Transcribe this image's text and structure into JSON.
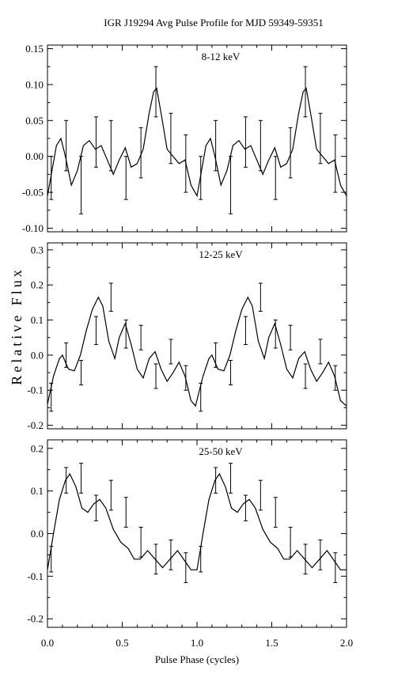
{
  "title": "IGR J19294 Avg Pulse Profile for MJD 59349-59351",
  "ylabel": "Relative Flux",
  "xlabel": "Pulse Phase (cycles)",
  "chart_data": [
    {
      "type": "line",
      "panel_label": "8-12 keV",
      "x_ticks": [
        "0.0",
        "0.5",
        "1.0",
        "1.5",
        "2.0"
      ],
      "xlim": [
        0,
        2
      ],
      "ylim": [
        -0.105,
        0.155
      ],
      "y_ticks": [
        {
          "v": -0.1,
          "label": "-0.10"
        },
        {
          "v": -0.05,
          "label": "-0.05"
        },
        {
          "v": 0.0,
          "label": "0.00"
        },
        {
          "v": 0.05,
          "label": "0.05"
        },
        {
          "v": 0.1,
          "label": "0.10"
        },
        {
          "v": 0.15,
          "label": "0.15"
        }
      ],
      "points": [
        {
          "x": 0.025,
          "y": -0.03,
          "err": 0.03
        },
        {
          "x": 0.125,
          "y": 0.015,
          "err": 0.035
        },
        {
          "x": 0.225,
          "y": -0.04,
          "err": 0.04
        },
        {
          "x": 0.325,
          "y": 0.02,
          "err": 0.035
        },
        {
          "x": 0.425,
          "y": 0.015,
          "err": 0.035
        },
        {
          "x": 0.525,
          "y": -0.03,
          "err": 0.03
        },
        {
          "x": 0.625,
          "y": 0.005,
          "err": 0.035
        },
        {
          "x": 0.725,
          "y": 0.09,
          "err": 0.035
        },
        {
          "x": 0.825,
          "y": 0.025,
          "err": 0.035
        },
        {
          "x": 0.925,
          "y": -0.01,
          "err": 0.04
        },
        {
          "x": 1.025,
          "y": -0.03,
          "err": 0.03
        },
        {
          "x": 1.125,
          "y": 0.015,
          "err": 0.035
        },
        {
          "x": 1.225,
          "y": -0.04,
          "err": 0.04
        },
        {
          "x": 1.325,
          "y": 0.02,
          "err": 0.035
        },
        {
          "x": 1.425,
          "y": 0.015,
          "err": 0.035
        },
        {
          "x": 1.525,
          "y": -0.03,
          "err": 0.03
        },
        {
          "x": 1.625,
          "y": 0.005,
          "err": 0.035
        },
        {
          "x": 1.725,
          "y": 0.09,
          "err": 0.035
        },
        {
          "x": 1.825,
          "y": 0.025,
          "err": 0.035
        },
        {
          "x": 1.925,
          "y": -0.01,
          "err": 0.04
        }
      ],
      "curve": [
        [
          0.0,
          -0.055
        ],
        [
          0.03,
          -0.02
        ],
        [
          0.06,
          0.015
        ],
        [
          0.09,
          0.025
        ],
        [
          0.12,
          0.0
        ],
        [
          0.16,
          -0.04
        ],
        [
          0.2,
          -0.02
        ],
        [
          0.24,
          0.015
        ],
        [
          0.28,
          0.022
        ],
        [
          0.32,
          0.01
        ],
        [
          0.36,
          0.015
        ],
        [
          0.4,
          -0.005
        ],
        [
          0.44,
          -0.025
        ],
        [
          0.48,
          -0.005
        ],
        [
          0.52,
          0.012
        ],
        [
          0.56,
          -0.015
        ],
        [
          0.6,
          -0.01
        ],
        [
          0.64,
          0.01
        ],
        [
          0.68,
          0.06
        ],
        [
          0.71,
          0.09
        ],
        [
          0.73,
          0.095
        ],
        [
          0.76,
          0.06
        ],
        [
          0.8,
          0.01
        ],
        [
          0.84,
          0.0
        ],
        [
          0.88,
          -0.01
        ],
        [
          0.92,
          -0.005
        ],
        [
          0.96,
          -0.04
        ],
        [
          1.0,
          -0.055
        ],
        [
          1.03,
          -0.02
        ],
        [
          1.06,
          0.015
        ],
        [
          1.09,
          0.025
        ],
        [
          1.12,
          0.0
        ],
        [
          1.16,
          -0.04
        ],
        [
          1.2,
          -0.02
        ],
        [
          1.24,
          0.015
        ],
        [
          1.28,
          0.022
        ],
        [
          1.32,
          0.01
        ],
        [
          1.36,
          0.015
        ],
        [
          1.4,
          -0.005
        ],
        [
          1.44,
          -0.025
        ],
        [
          1.48,
          -0.005
        ],
        [
          1.52,
          0.012
        ],
        [
          1.56,
          -0.015
        ],
        [
          1.6,
          -0.01
        ],
        [
          1.64,
          0.01
        ],
        [
          1.68,
          0.06
        ],
        [
          1.71,
          0.09
        ],
        [
          1.73,
          0.095
        ],
        [
          1.76,
          0.06
        ],
        [
          1.8,
          0.01
        ],
        [
          1.84,
          0.0
        ],
        [
          1.88,
          -0.01
        ],
        [
          1.92,
          -0.005
        ],
        [
          1.96,
          -0.04
        ],
        [
          2.0,
          -0.055
        ]
      ]
    },
    {
      "type": "line",
      "panel_label": "12-25 keV",
      "x_ticks": [
        "0.0",
        "0.5",
        "1.0",
        "1.5",
        "2.0"
      ],
      "xlim": [
        0,
        2
      ],
      "ylim": [
        -0.21,
        0.32
      ],
      "y_ticks": [
        {
          "v": -0.2,
          "label": "-0.2"
        },
        {
          "v": -0.1,
          "label": "-0.1"
        },
        {
          "v": 0.0,
          "label": "0.0"
        },
        {
          "v": 0.1,
          "label": "0.1"
        },
        {
          "v": 0.2,
          "label": "0.2"
        },
        {
          "v": 0.3,
          "label": "0.3"
        }
      ],
      "points": [
        {
          "x": 0.025,
          "y": -0.12,
          "err": 0.04
        },
        {
          "x": 0.125,
          "y": 0.0,
          "err": 0.035
        },
        {
          "x": 0.225,
          "y": -0.05,
          "err": 0.035
        },
        {
          "x": 0.325,
          "y": 0.07,
          "err": 0.04
        },
        {
          "x": 0.425,
          "y": 0.165,
          "err": 0.04
        },
        {
          "x": 0.525,
          "y": 0.06,
          "err": 0.04
        },
        {
          "x": 0.625,
          "y": 0.05,
          "err": 0.035
        },
        {
          "x": 0.725,
          "y": -0.06,
          "err": 0.035
        },
        {
          "x": 0.825,
          "y": 0.01,
          "err": 0.035
        },
        {
          "x": 0.925,
          "y": -0.065,
          "err": 0.035
        },
        {
          "x": 1.025,
          "y": -0.12,
          "err": 0.04
        },
        {
          "x": 1.125,
          "y": 0.0,
          "err": 0.035
        },
        {
          "x": 1.225,
          "y": -0.05,
          "err": 0.035
        },
        {
          "x": 1.325,
          "y": 0.07,
          "err": 0.04
        },
        {
          "x": 1.425,
          "y": 0.165,
          "err": 0.04
        },
        {
          "x": 1.525,
          "y": 0.06,
          "err": 0.04
        },
        {
          "x": 1.625,
          "y": 0.05,
          "err": 0.035
        },
        {
          "x": 1.725,
          "y": -0.06,
          "err": 0.035
        },
        {
          "x": 1.825,
          "y": 0.01,
          "err": 0.035
        },
        {
          "x": 1.925,
          "y": -0.065,
          "err": 0.035
        }
      ],
      "curve": [
        [
          0.0,
          -0.14
        ],
        [
          0.04,
          -0.06
        ],
        [
          0.08,
          -0.01
        ],
        [
          0.1,
          0.0
        ],
        [
          0.14,
          -0.04
        ],
        [
          0.18,
          -0.045
        ],
        [
          0.22,
          0.0
        ],
        [
          0.26,
          0.07
        ],
        [
          0.3,
          0.13
        ],
        [
          0.34,
          0.165
        ],
        [
          0.37,
          0.14
        ],
        [
          0.41,
          0.04
        ],
        [
          0.45,
          -0.01
        ],
        [
          0.48,
          0.05
        ],
        [
          0.52,
          0.09
        ],
        [
          0.56,
          0.03
        ],
        [
          0.6,
          -0.04
        ],
        [
          0.64,
          -0.065
        ],
        [
          0.68,
          -0.01
        ],
        [
          0.72,
          0.01
        ],
        [
          0.76,
          -0.04
        ],
        [
          0.8,
          -0.075
        ],
        [
          0.84,
          -0.05
        ],
        [
          0.88,
          -0.02
        ],
        [
          0.92,
          -0.06
        ],
        [
          0.96,
          -0.13
        ],
        [
          0.99,
          -0.145
        ],
        [
          1.04,
          -0.06
        ],
        [
          1.08,
          -0.01
        ],
        [
          1.1,
          0.0
        ],
        [
          1.14,
          -0.04
        ],
        [
          1.18,
          -0.045
        ],
        [
          1.22,
          0.0
        ],
        [
          1.26,
          0.07
        ],
        [
          1.3,
          0.13
        ],
        [
          1.34,
          0.165
        ],
        [
          1.37,
          0.14
        ],
        [
          1.41,
          0.04
        ],
        [
          1.45,
          -0.01
        ],
        [
          1.48,
          0.05
        ],
        [
          1.52,
          0.09
        ],
        [
          1.56,
          0.03
        ],
        [
          1.6,
          -0.04
        ],
        [
          1.64,
          -0.065
        ],
        [
          1.68,
          -0.01
        ],
        [
          1.72,
          0.01
        ],
        [
          1.76,
          -0.04
        ],
        [
          1.8,
          -0.075
        ],
        [
          1.84,
          -0.05
        ],
        [
          1.88,
          -0.02
        ],
        [
          1.92,
          -0.06
        ],
        [
          1.96,
          -0.13
        ],
        [
          2.0,
          -0.145
        ]
      ]
    },
    {
      "type": "line",
      "panel_label": "25-50 keV",
      "x_ticks": [
        "0.0",
        "0.5",
        "1.0",
        "1.5",
        "2.0"
      ],
      "xlim": [
        0,
        2
      ],
      "ylim": [
        -0.22,
        0.22
      ],
      "y_ticks": [
        {
          "v": -0.2,
          "label": "-0.2"
        },
        {
          "v": -0.1,
          "label": "-0.1"
        },
        {
          "v": 0.0,
          "label": "0.0"
        },
        {
          "v": 0.1,
          "label": "0.1"
        },
        {
          "v": 0.2,
          "label": "0.2"
        }
      ],
      "points": [
        {
          "x": 0.025,
          "y": -0.06,
          "err": 0.03
        },
        {
          "x": 0.125,
          "y": 0.125,
          "err": 0.03
        },
        {
          "x": 0.225,
          "y": 0.13,
          "err": 0.035
        },
        {
          "x": 0.325,
          "y": 0.06,
          "err": 0.03
        },
        {
          "x": 0.425,
          "y": 0.09,
          "err": 0.035
        },
        {
          "x": 0.525,
          "y": 0.05,
          "err": 0.035
        },
        {
          "x": 0.625,
          "y": -0.02,
          "err": 0.035
        },
        {
          "x": 0.725,
          "y": -0.06,
          "err": 0.035
        },
        {
          "x": 0.825,
          "y": -0.05,
          "err": 0.035
        },
        {
          "x": 0.925,
          "y": -0.08,
          "err": 0.035
        },
        {
          "x": 1.025,
          "y": -0.06,
          "err": 0.03
        },
        {
          "x": 1.125,
          "y": 0.125,
          "err": 0.03
        },
        {
          "x": 1.225,
          "y": 0.13,
          "err": 0.035
        },
        {
          "x": 1.325,
          "y": 0.06,
          "err": 0.03
        },
        {
          "x": 1.425,
          "y": 0.09,
          "err": 0.035
        },
        {
          "x": 1.525,
          "y": 0.05,
          "err": 0.035
        },
        {
          "x": 1.625,
          "y": -0.02,
          "err": 0.035
        },
        {
          "x": 1.725,
          "y": -0.06,
          "err": 0.035
        },
        {
          "x": 1.825,
          "y": -0.05,
          "err": 0.035
        },
        {
          "x": 1.925,
          "y": -0.08,
          "err": 0.035
        }
      ],
      "curve": [
        [
          0.0,
          -0.085
        ],
        [
          0.04,
          0.0
        ],
        [
          0.08,
          0.08
        ],
        [
          0.12,
          0.125
        ],
        [
          0.15,
          0.14
        ],
        [
          0.19,
          0.11
        ],
        [
          0.23,
          0.06
        ],
        [
          0.27,
          0.05
        ],
        [
          0.31,
          0.07
        ],
        [
          0.35,
          0.08
        ],
        [
          0.39,
          0.06
        ],
        [
          0.44,
          0.01
        ],
        [
          0.49,
          -0.02
        ],
        [
          0.54,
          -0.035
        ],
        [
          0.58,
          -0.06
        ],
        [
          0.62,
          -0.06
        ],
        [
          0.67,
          -0.04
        ],
        [
          0.72,
          -0.06
        ],
        [
          0.77,
          -0.08
        ],
        [
          0.82,
          -0.06
        ],
        [
          0.87,
          -0.04
        ],
        [
          0.92,
          -0.065
        ],
        [
          0.96,
          -0.085
        ],
        [
          1.0,
          -0.085
        ],
        [
          1.04,
          0.0
        ],
        [
          1.08,
          0.08
        ],
        [
          1.12,
          0.125
        ],
        [
          1.15,
          0.14
        ],
        [
          1.19,
          0.11
        ],
        [
          1.23,
          0.06
        ],
        [
          1.27,
          0.05
        ],
        [
          1.31,
          0.07
        ],
        [
          1.35,
          0.08
        ],
        [
          1.39,
          0.06
        ],
        [
          1.44,
          0.01
        ],
        [
          1.49,
          -0.02
        ],
        [
          1.54,
          -0.035
        ],
        [
          1.58,
          -0.06
        ],
        [
          1.62,
          -0.06
        ],
        [
          1.67,
          -0.04
        ],
        [
          1.72,
          -0.06
        ],
        [
          1.77,
          -0.08
        ],
        [
          1.82,
          -0.06
        ],
        [
          1.87,
          -0.04
        ],
        [
          1.92,
          -0.065
        ],
        [
          1.96,
          -0.085
        ],
        [
          2.0,
          -0.085
        ]
      ]
    }
  ]
}
